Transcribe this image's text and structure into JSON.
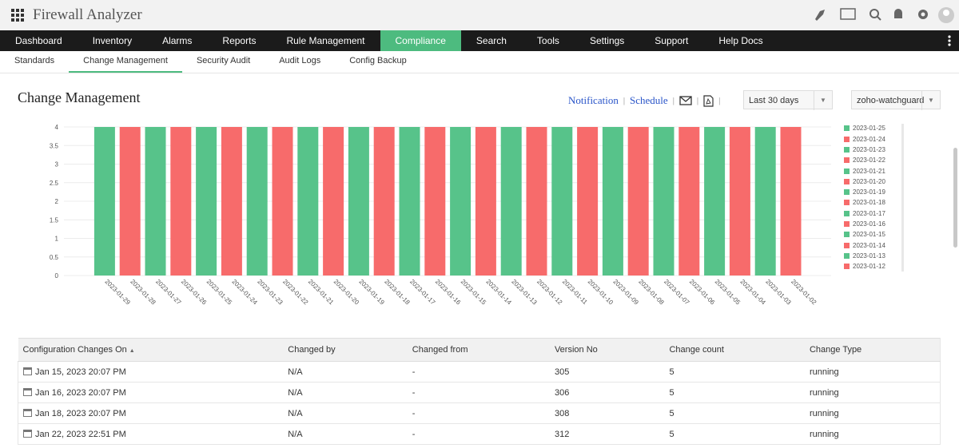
{
  "header": {
    "app_title": "Firewall Analyzer"
  },
  "nav": {
    "items": [
      "Dashboard",
      "Inventory",
      "Alarms",
      "Reports",
      "Rule Management",
      "Compliance",
      "Search",
      "Tools",
      "Settings",
      "Support",
      "Help Docs"
    ],
    "active": 5
  },
  "subnav": {
    "items": [
      "Standards",
      "Change Management",
      "Security Audit",
      "Audit Logs",
      "Config Backup"
    ],
    "active": 1
  },
  "page": {
    "title": "Change Management",
    "links": [
      "Notification",
      "Schedule"
    ],
    "date_range": "Last 30 days",
    "device": "zoho-watchguard"
  },
  "chart_data": {
    "type": "bar",
    "categories": [
      "2023-01-29",
      "2023-01-28",
      "2023-01-27",
      "2023-01-26",
      "2023-01-25",
      "2023-01-24",
      "2023-01-23",
      "2023-01-22",
      "2023-01-21",
      "2023-01-20",
      "2023-01-19",
      "2023-01-18",
      "2023-01-17",
      "2023-01-16",
      "2023-01-15",
      "2023-01-14",
      "2023-01-13",
      "2023-01-12",
      "2023-01-11",
      "2023-01-10",
      "2023-01-09",
      "2023-01-08",
      "2023-01-07",
      "2023-01-06",
      "2023-01-05",
      "2023-01-04",
      "2023-01-03",
      "2023-01-02"
    ],
    "values": [
      4,
      4,
      4,
      4,
      4,
      4,
      4,
      4,
      4,
      4,
      4,
      4,
      4,
      4,
      4,
      4,
      4,
      4,
      4,
      4,
      4,
      4,
      4,
      4,
      4,
      4,
      4,
      4
    ],
    "colors": [
      "#57c38a",
      "#f76b6b",
      "#57c38a",
      "#f76b6b",
      "#57c38a",
      "#f76b6b",
      "#57c38a",
      "#f76b6b",
      "#57c38a",
      "#f76b6b",
      "#57c38a",
      "#f76b6b",
      "#57c38a",
      "#f76b6b",
      "#57c38a",
      "#f76b6b",
      "#57c38a",
      "#f76b6b",
      "#57c38a",
      "#f76b6b",
      "#57c38a",
      "#f76b6b",
      "#57c38a",
      "#f76b6b",
      "#57c38a",
      "#f76b6b",
      "#57c38a",
      "#f76b6b"
    ],
    "ylim": [
      0,
      4
    ],
    "yticks": [
      0,
      0.5,
      1,
      1.5,
      2,
      2.5,
      3,
      3.5,
      4
    ],
    "grid": true,
    "legend": "right"
  },
  "table": {
    "columns": [
      "Configuration Changes On",
      "Changed by",
      "Changed from",
      "Version No",
      "Change count",
      "Change Type"
    ],
    "sorted_column": 0,
    "rows": [
      [
        "Jan 15, 2023 20:07 PM",
        "N/A",
        "-",
        305,
        5,
        "running"
      ],
      [
        "Jan 16, 2023 20:07 PM",
        "N/A",
        "-",
        306,
        5,
        "running"
      ],
      [
        "Jan 18, 2023 20:07 PM",
        "N/A",
        "-",
        308,
        5,
        "running"
      ],
      [
        "Jan 22, 2023 22:51 PM",
        "N/A",
        "-",
        312,
        5,
        "running"
      ]
    ]
  }
}
